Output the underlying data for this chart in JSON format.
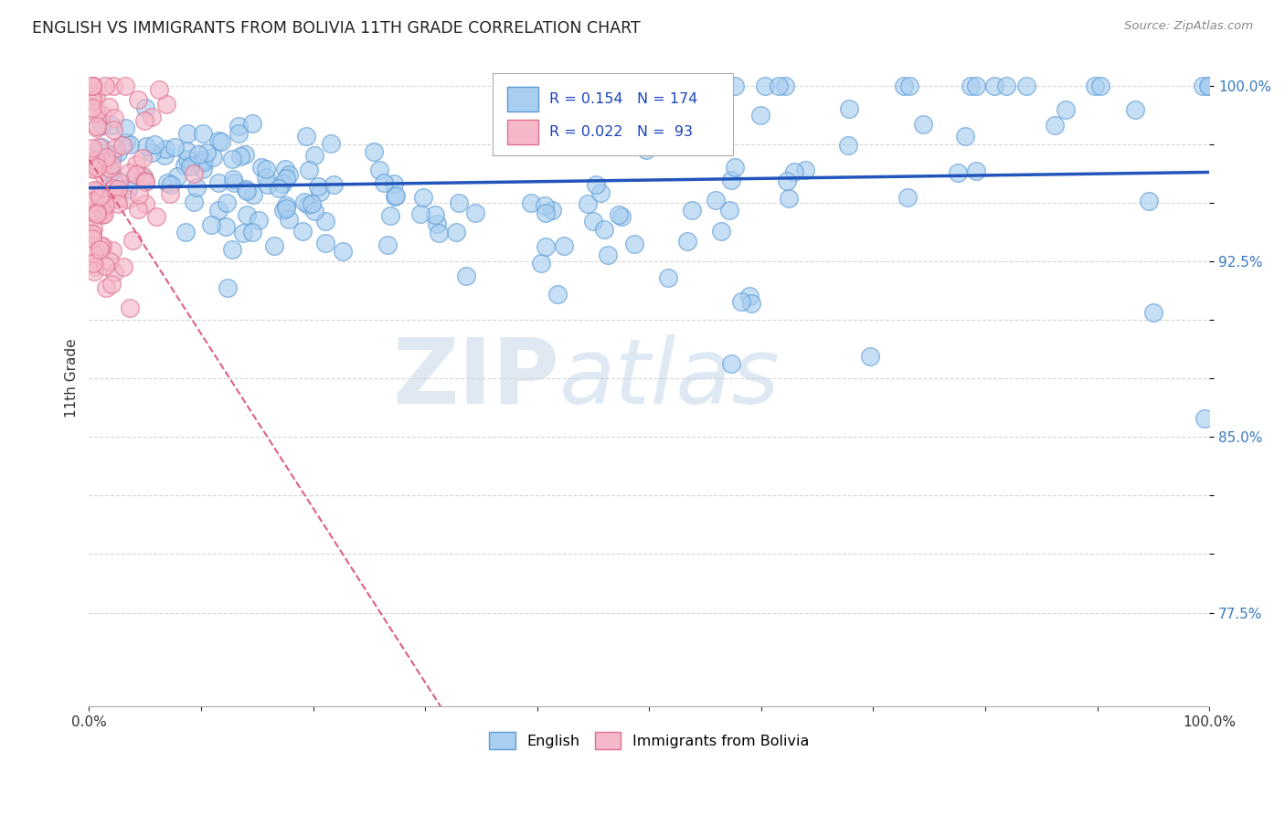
{
  "title": "ENGLISH VS IMMIGRANTS FROM BOLIVIA 11TH GRADE CORRELATION CHART",
  "source": "Source: ZipAtlas.com",
  "ylabel": "11th Grade",
  "ytick_vals": [
    0.775,
    0.8,
    0.825,
    0.85,
    0.875,
    0.9,
    0.925,
    0.95,
    0.975,
    1.0
  ],
  "ytick_labels": [
    "77.5%",
    "",
    "",
    "85.0%",
    "",
    "",
    "92.5%",
    "",
    "",
    "100.0%"
  ],
  "xlim": [
    0.0,
    1.0
  ],
  "ylim": [
    0.735,
    1.015
  ],
  "legend_english_R": "0.154",
  "legend_english_N": "174",
  "legend_bolivia_R": "0.022",
  "legend_bolivia_N": "93",
  "english_color": "#a8cef0",
  "english_edge_color": "#5b9bd5",
  "bolivia_color": "#f5b8c8",
  "bolivia_edge_color": "#e07090",
  "trend_english_color": "#2255bb",
  "trend_bolivia_color": "#dd6080",
  "watermark_zip": "ZIP",
  "watermark_atlas": "atlas",
  "background_color": "#ffffff"
}
